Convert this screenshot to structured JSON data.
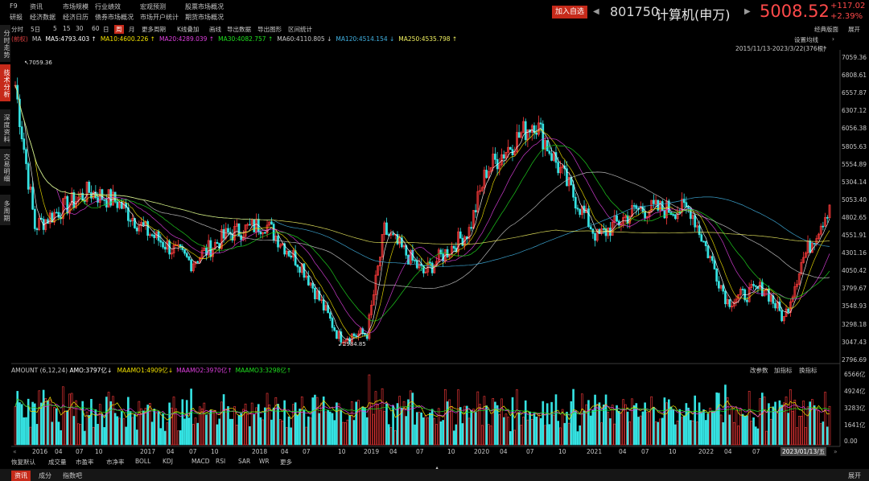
{
  "topnav": {
    "items": [
      {
        "label": "F9",
        "pos": "a1"
      },
      {
        "label": "资讯",
        "pos": "a2"
      },
      {
        "label": "市场规模",
        "pos": "a3"
      },
      {
        "label": "行业绩效",
        "pos": "a4"
      },
      {
        "label": "宏观预测",
        "pos": "a5"
      },
      {
        "label": "股票市场概况",
        "pos": "a6"
      },
      {
        "label": "研报",
        "pos": "b1"
      },
      {
        "label": "经济数据",
        "pos": "b2"
      },
      {
        "label": "经济日历",
        "pos": "b3"
      },
      {
        "label": "债券市场概况",
        "pos": "b4"
      },
      {
        "label": "市场开户统计",
        "pos": "b5"
      },
      {
        "label": "期货市场概况",
        "pos": "b6"
      }
    ],
    "add_watch": "加入自选",
    "code": "801750",
    "name": "计算机(申万)",
    "price": "5008.52",
    "change": "+117.02",
    "change_pct": "+2.39%"
  },
  "toolbar": {
    "items": [
      "分时",
      "5日",
      "5",
      "15",
      "30",
      "60",
      "日",
      "周",
      "月",
      "更多周期",
      "K线叠加",
      "画线",
      "导出数据",
      "导出图形",
      "区间统计"
    ],
    "active": "周",
    "right": [
      "经典版面",
      "展开"
    ]
  },
  "sidebar": [
    "分时走势",
    "技术分析",
    "深度资料",
    "交易明细",
    "多周期"
  ],
  "sidebar_active": "技术分析",
  "ma_line": {
    "prefix": "(前权)",
    "ma": "MA",
    "items": [
      {
        "label": "MA5:4793.403 ↑",
        "color": "#ffffff"
      },
      {
        "label": "MA10:4600.226 ↑",
        "color": "#f0e000"
      },
      {
        "label": "MA20:4289.039 ↑",
        "color": "#e040e0"
      },
      {
        "label": "MA30:4082.757 ↑",
        "color": "#20e020"
      },
      {
        "label": "MA60:4110.805 ↓",
        "color": "#c8c8c8"
      },
      {
        "label": "MA120:4514.154 ↓",
        "color": "#40b0e0"
      },
      {
        "label": "MA250:4535.798 ↑",
        "color": "#f0f060"
      }
    ]
  },
  "chart_header": {
    "settings": "设置均线",
    "range": "2015/11/13-2023/3/22(376根)"
  },
  "price_axis": [
    "7059.36",
    "6808.61",
    "6557.87",
    "6307.12",
    "6056.38",
    "5805.63",
    "5554.89",
    "5304.14",
    "5053.40",
    "4802.65",
    "4551.91",
    "4301.16",
    "4050.42",
    "3799.67",
    "3548.93",
    "3298.18",
    "3047.43",
    "2796.69"
  ],
  "high_label": "7059.36",
  "low_label": "2984.85",
  "volume": {
    "title": "AMOUNT",
    "params": "(6,12,24)",
    "amo": "AMO:3797亿↓",
    "items": [
      {
        "label": "MAAMO1:4909亿↓",
        "color": "#f0e000"
      },
      {
        "label": "MAAMO2:3970亿↑",
        "color": "#e040e0"
      },
      {
        "label": "MAAMO3:3298亿↑",
        "color": "#20e020"
      }
    ],
    "right": [
      "改参数",
      "加指标",
      "换指标"
    ],
    "axis": [
      "6566亿",
      "4924亿",
      "3283亿",
      "1641亿",
      "0.00"
    ]
  },
  "x_axis": [
    {
      "label": "2016",
      "x": 40
    },
    {
      "label": "04",
      "x": 68
    },
    {
      "label": "07",
      "x": 94
    },
    {
      "label": "10",
      "x": 118
    },
    {
      "label": "2017",
      "x": 174
    },
    {
      "label": "04",
      "x": 207
    },
    {
      "label": "07",
      "x": 235
    },
    {
      "label": "10",
      "x": 262
    },
    {
      "label": "2018",
      "x": 313
    },
    {
      "label": "04",
      "x": 349
    },
    {
      "label": "07",
      "x": 376
    },
    {
      "label": "10",
      "x": 420
    },
    {
      "label": "2019",
      "x": 452
    },
    {
      "label": "04",
      "x": 484
    },
    {
      "label": "07",
      "x": 517
    },
    {
      "label": "10",
      "x": 556
    },
    {
      "label": "2020",
      "x": 589
    },
    {
      "label": "04",
      "x": 621
    },
    {
      "label": "07",
      "x": 654
    },
    {
      "label": "10",
      "x": 694
    },
    {
      "label": "2021",
      "x": 729
    },
    {
      "label": "04",
      "x": 769
    },
    {
      "label": "07",
      "x": 797
    },
    {
      "label": "10",
      "x": 831
    },
    {
      "label": "2022",
      "x": 868
    },
    {
      "label": "04",
      "x": 900
    },
    {
      "label": "07",
      "x": 935
    }
  ],
  "x_cursor": "2023/01/13/五",
  "bottom_tabs": [
    "恢复默认",
    "成交量",
    "市盈率",
    "市净率",
    "BOLL",
    "KDJ",
    "MACD",
    "RSI",
    "SAR",
    "WR",
    "更多"
  ],
  "footer": {
    "tabs": [
      "资讯",
      "成分",
      "指数吧"
    ],
    "active": "资讯",
    "right": "展开"
  },
  "colors": {
    "up": "#ff3b3b",
    "down": "#35e3e3",
    "accent": "#c62a1a"
  },
  "chart_data": {
    "type": "candlestick",
    "period": "weekly",
    "range": "2015/11/13-2023/3/22",
    "ylim": [
      2796.69,
      7059.36
    ],
    "high": 7059.36,
    "low": 2984.85,
    "key_closes": [
      {
        "date": "2015-11",
        "close": 6700
      },
      {
        "date": "2016-01",
        "close": 4700
      },
      {
        "date": "2016-04",
        "close": 4950
      },
      {
        "date": "2016-07",
        "close": 5200
      },
      {
        "date": "2016-10",
        "close": 5050
      },
      {
        "date": "2017-01",
        "close": 4650
      },
      {
        "date": "2017-06",
        "close": 4200
      },
      {
        "date": "2017-10",
        "close": 4600
      },
      {
        "date": "2018-02",
        "close": 4750
      },
      {
        "date": "2018-06",
        "close": 4150
      },
      {
        "date": "2018-10",
        "close": 3150
      },
      {
        "date": "2019-01",
        "close": 3200
      },
      {
        "date": "2019-03",
        "close": 4650
      },
      {
        "date": "2019-07",
        "close": 4050
      },
      {
        "date": "2019-12",
        "close": 4650
      },
      {
        "date": "2020-02",
        "close": 5500
      },
      {
        "date": "2020-07",
        "close": 6200
      },
      {
        "date": "2020-11",
        "close": 5200
      },
      {
        "date": "2021-02",
        "close": 4550
      },
      {
        "date": "2021-06",
        "close": 4950
      },
      {
        "date": "2021-12",
        "close": 4950
      },
      {
        "date": "2022-04",
        "close": 3650
      },
      {
        "date": "2022-08",
        "close": 3850
      },
      {
        "date": "2022-10",
        "close": 3400
      },
      {
        "date": "2022-12",
        "close": 4200
      },
      {
        "date": "2023-03",
        "close": 5008.52
      }
    ]
  }
}
